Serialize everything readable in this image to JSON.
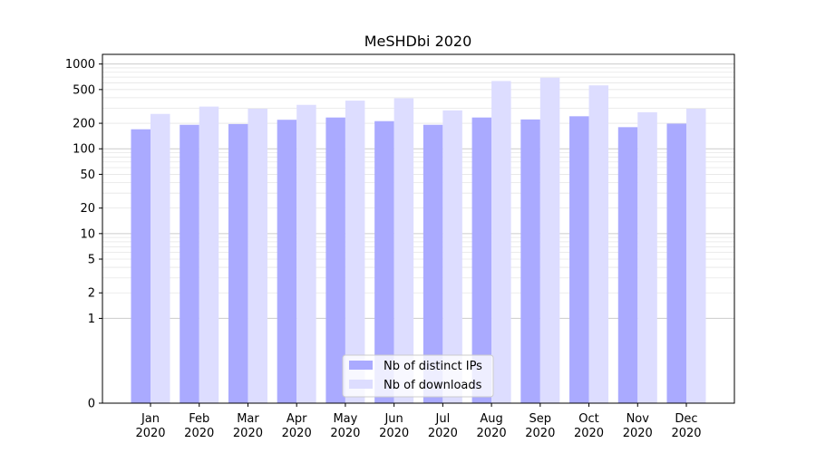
{
  "chart_data": {
    "type": "bar",
    "title": "MeSHDbi 2020",
    "y_scale": "symlog",
    "ylim": [
      0,
      1300
    ],
    "grid": true,
    "legend_position": "bottom-center",
    "categories": [
      [
        "Jan",
        "2020"
      ],
      [
        "Feb",
        "2020"
      ],
      [
        "Mar",
        "2020"
      ],
      [
        "Apr",
        "2020"
      ],
      [
        "May",
        "2020"
      ],
      [
        "Jun",
        "2020"
      ],
      [
        "Jul",
        "2020"
      ],
      [
        "Aug",
        "2020"
      ],
      [
        "Sep",
        "2020"
      ],
      [
        "Oct",
        "2020"
      ],
      [
        "Nov",
        "2020"
      ],
      [
        "Dec",
        "2020"
      ]
    ],
    "y_ticks": [
      {
        "value": 0,
        "label": "0"
      },
      {
        "value": 1,
        "label": "1"
      },
      {
        "value": 2,
        "label": "2"
      },
      {
        "value": 5,
        "label": "5"
      },
      {
        "value": 10,
        "label": "10"
      },
      {
        "value": 20,
        "label": "20"
      },
      {
        "value": 50,
        "label": "50"
      },
      {
        "value": 100,
        "label": "100"
      },
      {
        "value": 200,
        "label": "200"
      },
      {
        "value": 500,
        "label": "500"
      },
      {
        "value": 1000,
        "label": "1000"
      }
    ],
    "series": [
      {
        "name": "Nb of distinct IPs",
        "color": "#aaaaff",
        "values": [
          170,
          192,
          196,
          220,
          234,
          212,
          192,
          234,
          222,
          242,
          180,
          198
        ]
      },
      {
        "name": "Nb of downloads",
        "color": "#ddddff",
        "values": [
          258,
          315,
          297,
          330,
          370,
          395,
          284,
          630,
          690,
          560,
          270,
          297
        ]
      }
    ]
  }
}
